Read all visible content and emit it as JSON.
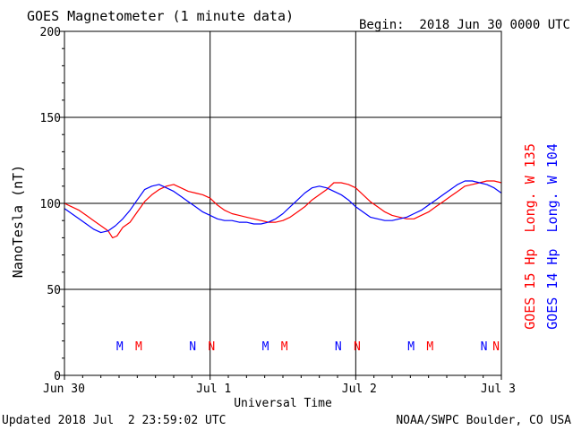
{
  "chart_data": {
    "type": "line",
    "title": "GOES Magnetometer (1 minute data)",
    "begin_label": "Begin:  2018 Jun 30 0000 UTC",
    "ylabel": "NanoTesla (nT)",
    "xlabel": "Universal Time",
    "ylim": [
      0,
      200
    ],
    "yticks": [
      0,
      50,
      100,
      150,
      200
    ],
    "xlim_days": [
      0,
      3
    ],
    "xticks": [
      {
        "day": 0,
        "label": "Jun 30"
      },
      {
        "day": 1,
        "label": "Jul 1"
      },
      {
        "day": 2,
        "label": "Jul 2"
      },
      {
        "day": 3,
        "label": "Jul 3"
      }
    ],
    "grid": true,
    "legend_placement": "right, vertical",
    "series": [
      {
        "name": "GOES 15 Hp  Long. W 135",
        "color": "#ff0000",
        "points": [
          [
            0.0,
            100
          ],
          [
            0.05,
            98
          ],
          [
            0.1,
            96
          ],
          [
            0.15,
            93
          ],
          [
            0.2,
            90
          ],
          [
            0.25,
            87
          ],
          [
            0.3,
            84
          ],
          [
            0.33,
            80
          ],
          [
            0.36,
            81
          ],
          [
            0.4,
            86
          ],
          [
            0.45,
            89
          ],
          [
            0.5,
            95
          ],
          [
            0.55,
            101
          ],
          [
            0.6,
            105
          ],
          [
            0.65,
            108
          ],
          [
            0.7,
            110
          ],
          [
            0.75,
            111
          ],
          [
            0.8,
            109
          ],
          [
            0.85,
            107
          ],
          [
            0.9,
            106
          ],
          [
            0.95,
            105
          ],
          [
            1.0,
            103
          ],
          [
            1.05,
            99
          ],
          [
            1.1,
            96
          ],
          [
            1.15,
            94
          ],
          [
            1.2,
            93
          ],
          [
            1.25,
            92
          ],
          [
            1.3,
            91
          ],
          [
            1.35,
            90
          ],
          [
            1.4,
            89
          ],
          [
            1.45,
            89
          ],
          [
            1.5,
            90
          ],
          [
            1.55,
            92
          ],
          [
            1.6,
            95
          ],
          [
            1.65,
            98
          ],
          [
            1.7,
            102
          ],
          [
            1.75,
            105
          ],
          [
            1.8,
            108
          ],
          [
            1.85,
            112
          ],
          [
            1.9,
            112
          ],
          [
            1.95,
            111
          ],
          [
            2.0,
            109
          ],
          [
            2.05,
            105
          ],
          [
            2.1,
            101
          ],
          [
            2.15,
            98
          ],
          [
            2.2,
            95
          ],
          [
            2.25,
            93
          ],
          [
            2.3,
            92
          ],
          [
            2.35,
            91
          ],
          [
            2.4,
            91
          ],
          [
            2.45,
            93
          ],
          [
            2.5,
            95
          ],
          [
            2.55,
            98
          ],
          [
            2.6,
            101
          ],
          [
            2.65,
            104
          ],
          [
            2.7,
            107
          ],
          [
            2.75,
            110
          ],
          [
            2.8,
            111
          ],
          [
            2.85,
            112
          ],
          [
            2.9,
            113
          ],
          [
            2.95,
            113
          ],
          [
            3.0,
            112
          ]
        ]
      },
      {
        "name": "GOES 14 Hp  Long. W 104",
        "color": "#0000ff",
        "points": [
          [
            0.0,
            97
          ],
          [
            0.05,
            94
          ],
          [
            0.1,
            91
          ],
          [
            0.15,
            88
          ],
          [
            0.2,
            85
          ],
          [
            0.25,
            83
          ],
          [
            0.3,
            84
          ],
          [
            0.35,
            87
          ],
          [
            0.4,
            91
          ],
          [
            0.45,
            96
          ],
          [
            0.5,
            102
          ],
          [
            0.55,
            108
          ],
          [
            0.6,
            110
          ],
          [
            0.65,
            111
          ],
          [
            0.7,
            109
          ],
          [
            0.75,
            107
          ],
          [
            0.8,
            104
          ],
          [
            0.85,
            101
          ],
          [
            0.9,
            98
          ],
          [
            0.95,
            95
          ],
          [
            1.0,
            93
          ],
          [
            1.05,
            91
          ],
          [
            1.1,
            90
          ],
          [
            1.15,
            90
          ],
          [
            1.2,
            89
          ],
          [
            1.25,
            89
          ],
          [
            1.3,
            88
          ],
          [
            1.35,
            88
          ],
          [
            1.4,
            89
          ],
          [
            1.45,
            91
          ],
          [
            1.5,
            94
          ],
          [
            1.55,
            98
          ],
          [
            1.6,
            102
          ],
          [
            1.65,
            106
          ],
          [
            1.7,
            109
          ],
          [
            1.75,
            110
          ],
          [
            1.8,
            109
          ],
          [
            1.85,
            107
          ],
          [
            1.9,
            105
          ],
          [
            1.95,
            102
          ],
          [
            2.0,
            98
          ],
          [
            2.05,
            95
          ],
          [
            2.1,
            92
          ],
          [
            2.15,
            91
          ],
          [
            2.2,
            90
          ],
          [
            2.25,
            90
          ],
          [
            2.3,
            91
          ],
          [
            2.35,
            92
          ],
          [
            2.4,
            94
          ],
          [
            2.45,
            96
          ],
          [
            2.5,
            99
          ],
          [
            2.55,
            102
          ],
          [
            2.6,
            105
          ],
          [
            2.65,
            108
          ],
          [
            2.7,
            111
          ],
          [
            2.75,
            113
          ],
          [
            2.8,
            113
          ],
          [
            2.85,
            112
          ],
          [
            2.9,
            111
          ],
          [
            2.95,
            109
          ],
          [
            3.0,
            106
          ]
        ]
      }
    ],
    "markers": [
      {
        "text": "M",
        "color": "#0000ff",
        "day": 0.38
      },
      {
        "text": "M",
        "color": "#ff0000",
        "day": 0.51
      },
      {
        "text": "N",
        "color": "#0000ff",
        "day": 0.88
      },
      {
        "text": "N",
        "color": "#ff0000",
        "day": 1.01
      },
      {
        "text": "M",
        "color": "#0000ff",
        "day": 1.38
      },
      {
        "text": "M",
        "color": "#ff0000",
        "day": 1.51
      },
      {
        "text": "N",
        "color": "#0000ff",
        "day": 1.88
      },
      {
        "text": "N",
        "color": "#ff0000",
        "day": 2.01
      },
      {
        "text": "M",
        "color": "#0000ff",
        "day": 2.38
      },
      {
        "text": "M",
        "color": "#ff0000",
        "day": 2.51
      },
      {
        "text": "N",
        "color": "#0000ff",
        "day": 2.88
      },
      {
        "text": "N",
        "color": "#ff0000",
        "day": 3.01
      }
    ]
  },
  "footer": {
    "updated": "Updated 2018 Jul  2 23:59:02 UTC",
    "source": "NOAA/SWPC Boulder, CO USA"
  }
}
